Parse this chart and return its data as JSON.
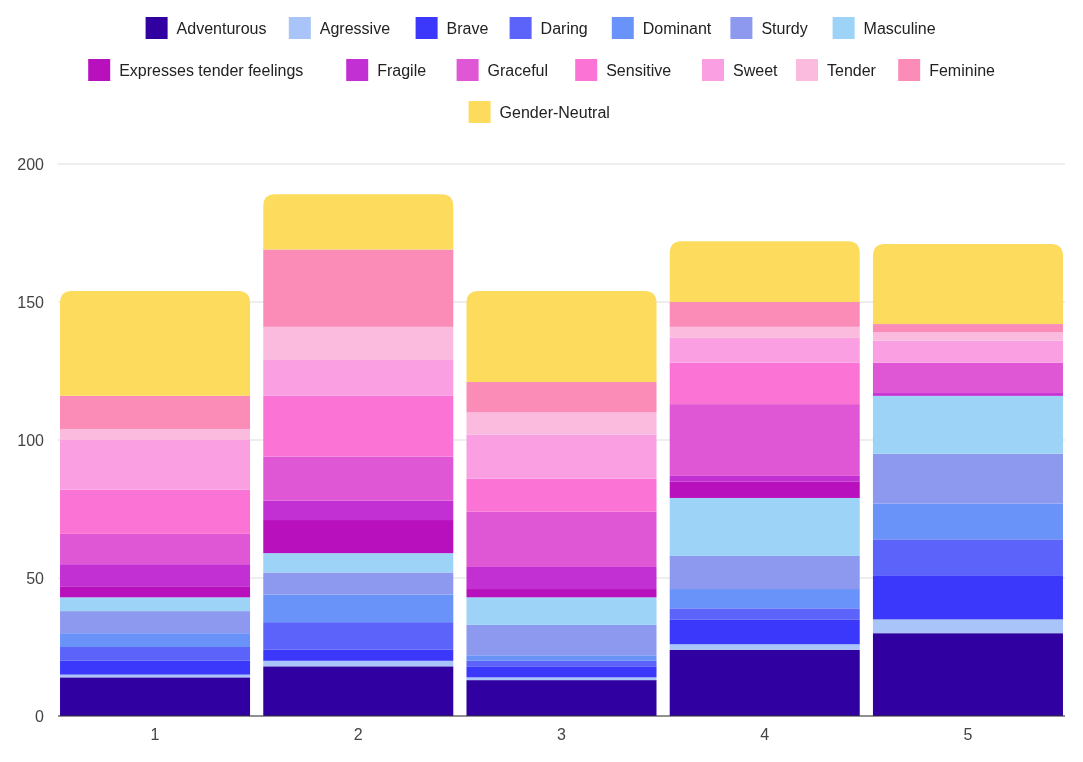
{
  "chart_data": {
    "type": "bar",
    "stacked": true,
    "categories": [
      "1",
      "2",
      "3",
      "4",
      "5"
    ],
    "ylim": [
      0,
      200
    ],
    "yticks": [
      0,
      50,
      100,
      150,
      200
    ],
    "grid": "y",
    "legend": "top",
    "series": [
      {
        "name": "Adventurous",
        "color": "#3000a0",
        "values": [
          14,
          18,
          13,
          24,
          30
        ]
      },
      {
        "name": "Agressive",
        "color": "#a9c4f9",
        "values": [
          1,
          2,
          1,
          2,
          5
        ]
      },
      {
        "name": "Brave",
        "color": "#3b38fb",
        "values": [
          5,
          4,
          4,
          9,
          16
        ]
      },
      {
        "name": "Daring",
        "color": "#5b63fa",
        "values": [
          5,
          10,
          2,
          4,
          13
        ]
      },
      {
        "name": "Dominant",
        "color": "#6a93fa",
        "values": [
          5,
          10,
          2,
          7,
          13
        ]
      },
      {
        "name": "Sturdy",
        "color": "#8c99ef",
        "values": [
          8,
          8,
          11,
          12,
          18
        ]
      },
      {
        "name": "Masculine",
        "color": "#9dd3f7",
        "values": [
          5,
          7,
          10,
          21,
          21
        ]
      },
      {
        "name": "Expresses tender feelings",
        "color": "#b810bc",
        "values": [
          4,
          12,
          3,
          6,
          0
        ]
      },
      {
        "name": "Fragile",
        "color": "#c22fd3",
        "values": [
          8,
          7,
          8,
          2,
          1
        ]
      },
      {
        "name": "Graceful",
        "color": "#e057d5",
        "values": [
          11,
          16,
          20,
          26,
          11
        ]
      },
      {
        "name": "Sensitive",
        "color": "#fc73d6",
        "values": [
          16,
          22,
          12,
          15,
          0
        ]
      },
      {
        "name": "Sweet",
        "color": "#fa9fe2",
        "values": [
          18,
          13,
          16,
          9,
          8
        ]
      },
      {
        "name": "Tender",
        "color": "#fabbdf",
        "values": [
          4,
          12,
          8,
          4,
          3
        ]
      },
      {
        "name": "Feminine",
        "color": "#fb8cb7",
        "values": [
          12,
          28,
          11,
          9,
          3
        ]
      },
      {
        "name": "Gender-Neutral",
        "color": "#fddb5c",
        "values": [
          38,
          20,
          33,
          22,
          29
        ]
      }
    ]
  }
}
